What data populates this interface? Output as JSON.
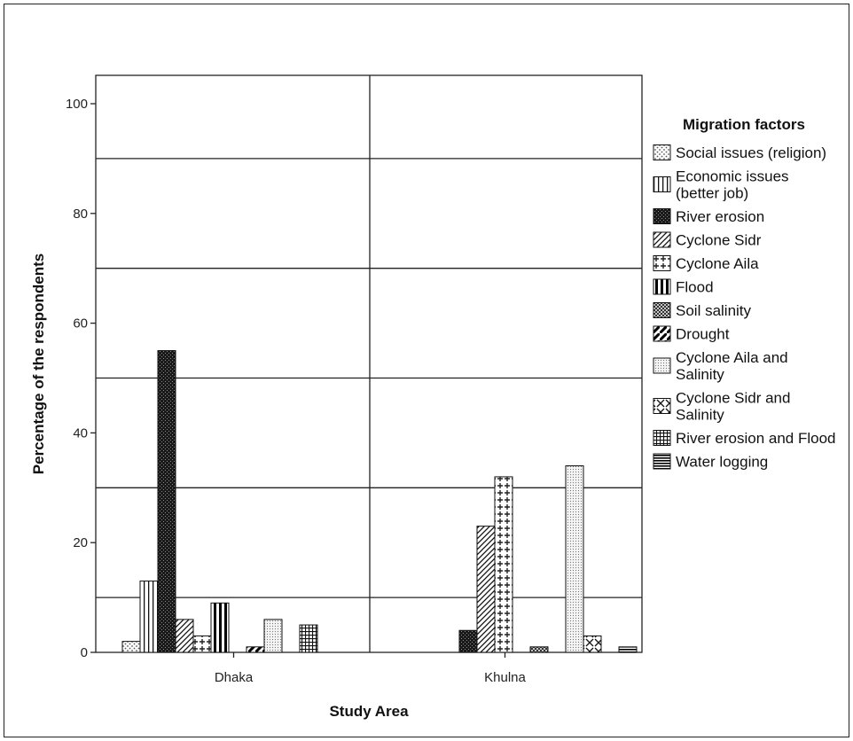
{
  "chart_data": {
    "type": "bar",
    "xlabel": "Study Area",
    "ylabel": "Percentage of the respondents",
    "ylim": [
      0,
      105
    ],
    "yticks": [
      0,
      20,
      40,
      60,
      80,
      100
    ],
    "gridlines": [
      10,
      30,
      50,
      70,
      90
    ],
    "grid": true,
    "legend_title": "Migration factors",
    "legend_position": "right",
    "categories": [
      "Dhaka",
      "Khulna"
    ],
    "series": [
      {
        "name": "Social issues (religion)",
        "pattern": "dots",
        "values": [
          2,
          0
        ]
      },
      {
        "name": "Economic issues (better job)",
        "pattern": "vlines",
        "values": [
          13,
          0
        ]
      },
      {
        "name": "River erosion",
        "pattern": "dark-check",
        "values": [
          55,
          4
        ]
      },
      {
        "name": "Cyclone Sidr",
        "pattern": "diag",
        "values": [
          6,
          23
        ]
      },
      {
        "name": "Cyclone Aila",
        "pattern": "plus",
        "values": [
          3,
          32
        ]
      },
      {
        "name": "Flood",
        "pattern": "thick-vlines",
        "values": [
          9,
          0
        ]
      },
      {
        "name": "Soil salinity",
        "pattern": "crosshatch",
        "values": [
          0,
          1
        ]
      },
      {
        "name": "Drought",
        "pattern": "bold-diag",
        "values": [
          1,
          0
        ]
      },
      {
        "name": "Cyclone Aila and Salinity",
        "pattern": "fine-dots",
        "values": [
          6,
          34
        ]
      },
      {
        "name": "Cyclone Sidr and Salinity",
        "pattern": "xbox",
        "values": [
          0,
          3
        ]
      },
      {
        "name": "River erosion and Flood",
        "pattern": "grid",
        "values": [
          5,
          0
        ]
      },
      {
        "name": "Water logging",
        "pattern": "hlines",
        "values": [
          0,
          1
        ]
      }
    ],
    "legend_lines": [
      [
        "Social issues (religion)"
      ],
      [
        "Economic issues",
        "(better job)"
      ],
      [
        "River erosion"
      ],
      [
        "Cyclone Sidr"
      ],
      [
        "Cyclone Aila"
      ],
      [
        "Flood"
      ],
      [
        "Soil salinity"
      ],
      [
        "Drought"
      ],
      [
        "Cyclone Aila and",
        "Salinity"
      ],
      [
        "Cyclone Sidr and",
        "Salinity"
      ],
      [
        "River erosion and Flood"
      ],
      [
        "Water logging"
      ]
    ]
  }
}
